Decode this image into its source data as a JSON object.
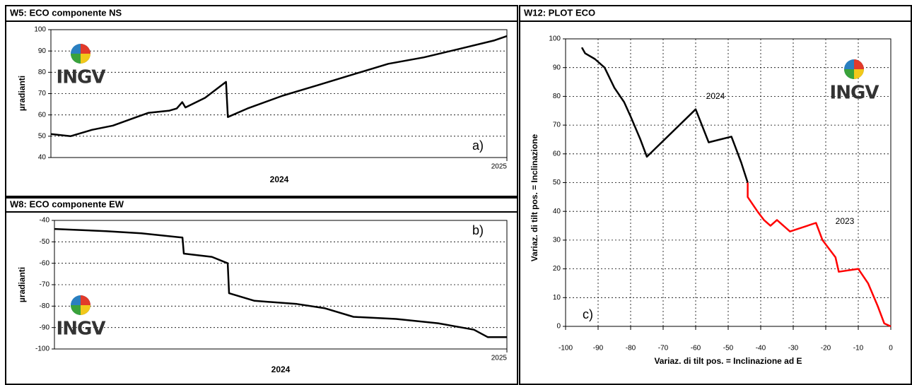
{
  "logo": "INGV",
  "chart_data": [
    {
      "type": "line",
      "title": "W5: ECO componente NS",
      "xlabel": "2024",
      "ylabel": "µradianti",
      "annotation": "a)",
      "xlim": [
        2024,
        2025
      ],
      "xticks": [
        2025
      ],
      "ylim": [
        40,
        100
      ],
      "yticks": [
        40,
        50,
        60,
        70,
        80,
        90,
        100
      ],
      "grid": true,
      "series": [
        {
          "name": "W5",
          "color": "#000000",
          "x": [
            2024,
            2024.043,
            2024.09,
            2024.136,
            2024.175,
            2024.214,
            2024.26,
            2024.276,
            2024.288,
            2024.295,
            2024.338,
            2024.384,
            2024.388,
            2024.431,
            2024.508,
            2024.586,
            2024.663,
            2024.74,
            2024.818,
            2024.896,
            2024.973,
            2025
          ],
          "values": [
            51,
            50,
            53,
            55,
            58,
            61,
            62,
            63,
            66,
            63.5,
            68,
            75.5,
            59,
            63,
            69,
            74,
            79,
            84,
            87,
            91,
            95,
            97
          ]
        }
      ]
    },
    {
      "type": "line",
      "title": "W8: ECO componente EW",
      "xlabel": "2024",
      "ylabel": "µradianti",
      "annotation": "b)",
      "xlim": [
        2024,
        2025
      ],
      "xticks": [
        2025
      ],
      "ylim": [
        -100,
        -40
      ],
      "yticks": [
        -100,
        -90,
        -80,
        -70,
        -60,
        -50,
        -40
      ],
      "grid": true,
      "series": [
        {
          "name": "W8",
          "color": "#000000",
          "x": [
            2024,
            2024.114,
            2024.192,
            2024.283,
            2024.286,
            2024.348,
            2024.383,
            2024.386,
            2024.442,
            2024.536,
            2024.598,
            2024.661,
            2024.755,
            2024.848,
            2024.927,
            2024.958,
            2025
          ],
          "values": [
            -44,
            -45,
            -46,
            -48,
            -55.5,
            -57,
            -60,
            -74,
            -77.5,
            -79,
            -81,
            -85,
            -86,
            -88,
            -91,
            -94.5,
            -94.5
          ]
        }
      ]
    },
    {
      "type": "xyline",
      "title": "W12: PLOT ECO",
      "xlabel": "Variaz. di tilt pos. = Inclinazione ad E",
      "ylabel": "Variaz. di tilt pos. = Inclinazione",
      "annotation": "c)",
      "xlim": [
        -100,
        0
      ],
      "xticks": [
        -100,
        -90,
        -80,
        -70,
        -60,
        -50,
        -40,
        -30,
        -20,
        -10,
        0
      ],
      "ylim": [
        0,
        100
      ],
      "yticks": [
        0,
        10,
        20,
        30,
        40,
        50,
        60,
        70,
        80,
        90,
        100
      ],
      "grid": true,
      "series": [
        {
          "name": "2024",
          "color": "#000000",
          "x": [
            -44,
            -46,
            -48,
            -49,
            -56,
            -60,
            -75,
            -77,
            -80,
            -82,
            -85,
            -88,
            -91,
            -94,
            -95
          ],
          "values": [
            50,
            57,
            63,
            66,
            64,
            75.5,
            59,
            65,
            73,
            78,
            83,
            90,
            93,
            95,
            97
          ]
        },
        {
          "name": "2023",
          "color": "#ff0000",
          "x": [
            0,
            -2,
            -4,
            -7,
            -10,
            -16,
            -17,
            -21,
            -23,
            -31,
            -35,
            -37,
            -39,
            -41,
            -44,
            -44
          ],
          "values": [
            0,
            1,
            7,
            15,
            20,
            19,
            24,
            30,
            36,
            33,
            37,
            35,
            37,
            40,
            45,
            50
          ]
        }
      ]
    }
  ]
}
